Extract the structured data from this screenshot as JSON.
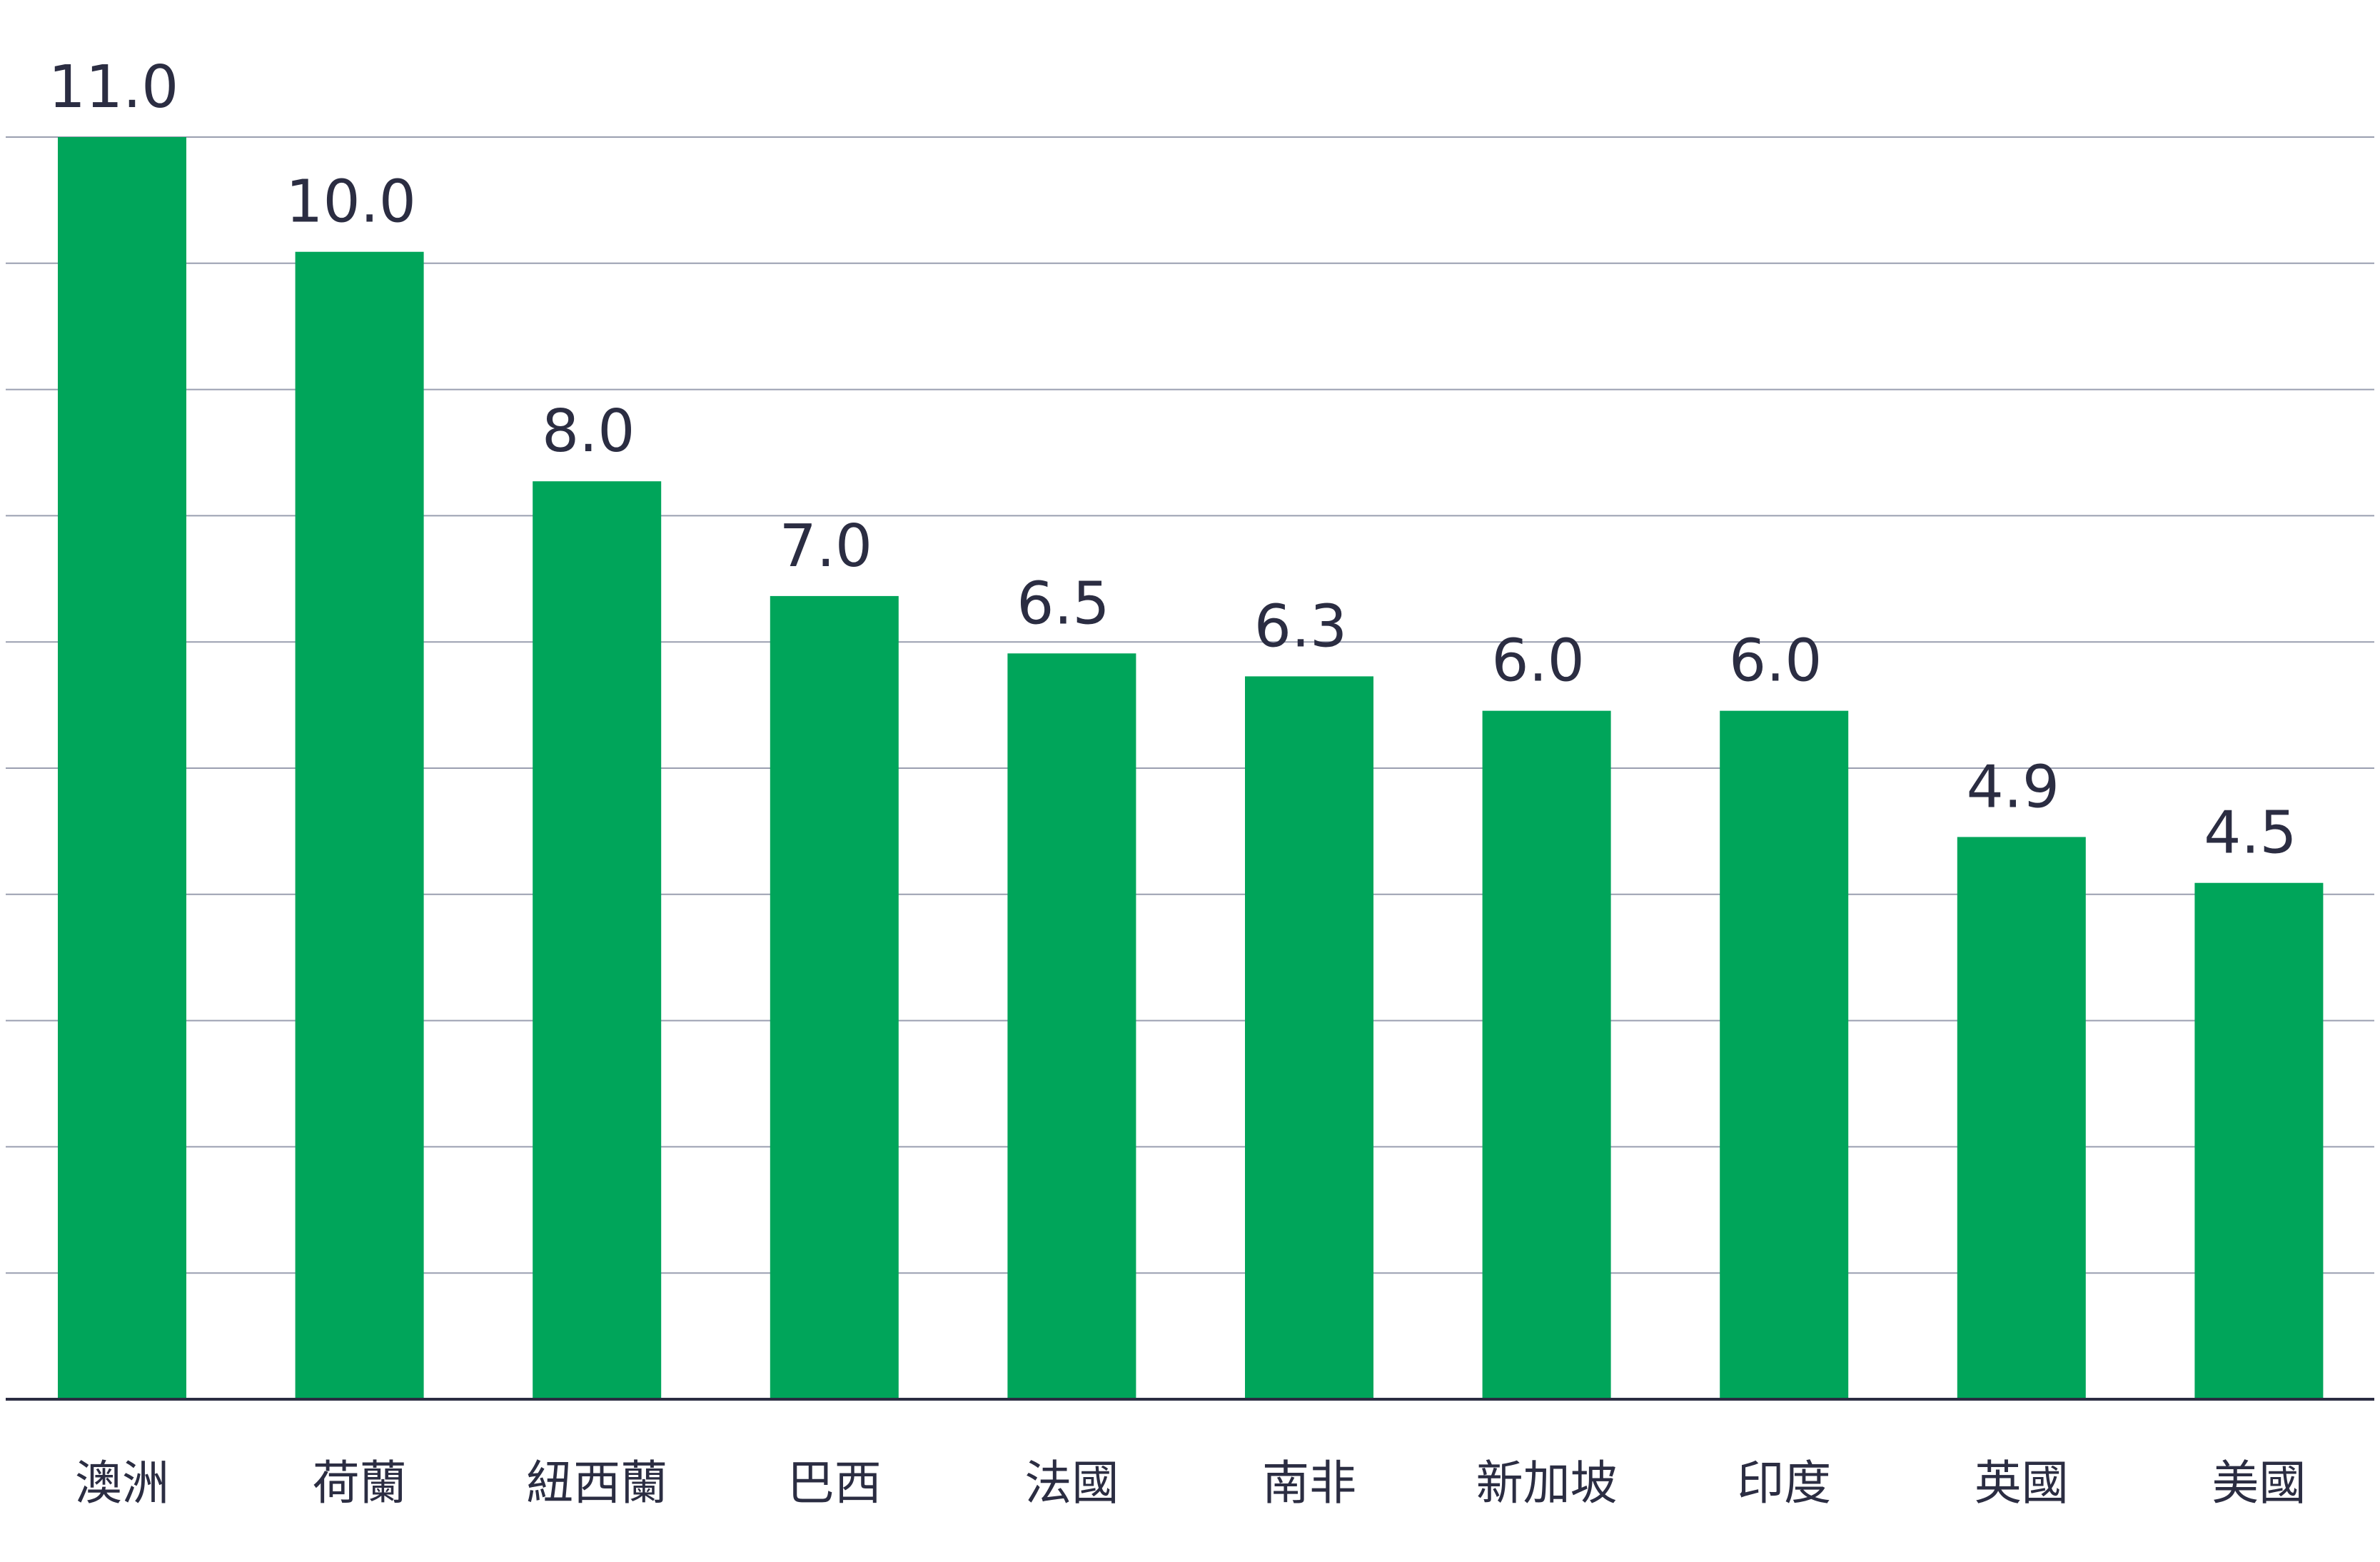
{
  "chart_data": {
    "type": "bar",
    "categories": [
      "澳洲",
      "荷蘭",
      "紐西蘭",
      "巴西",
      "法國",
      "南非",
      "新加坡",
      "印度",
      "英國",
      "美國"
    ],
    "values": [
      11.0,
      10.0,
      8.0,
      7.0,
      6.5,
      6.3,
      6.0,
      6.0,
      4.9,
      4.5
    ],
    "value_labels": [
      "11.0",
      "10.0",
      "8.0",
      "7.0",
      "6.5",
      "6.3",
      "6.0",
      "6.0",
      "4.9",
      "4.5"
    ],
    "title": "",
    "xlabel": "",
    "ylabel": "",
    "ylim": [
      0,
      11
    ],
    "grid": true,
    "legend": "none",
    "colors": {
      "bar": "#00A55A",
      "grid": "#9A9FB0",
      "axis": "#2B2D42",
      "text": "#2B2D42"
    }
  }
}
